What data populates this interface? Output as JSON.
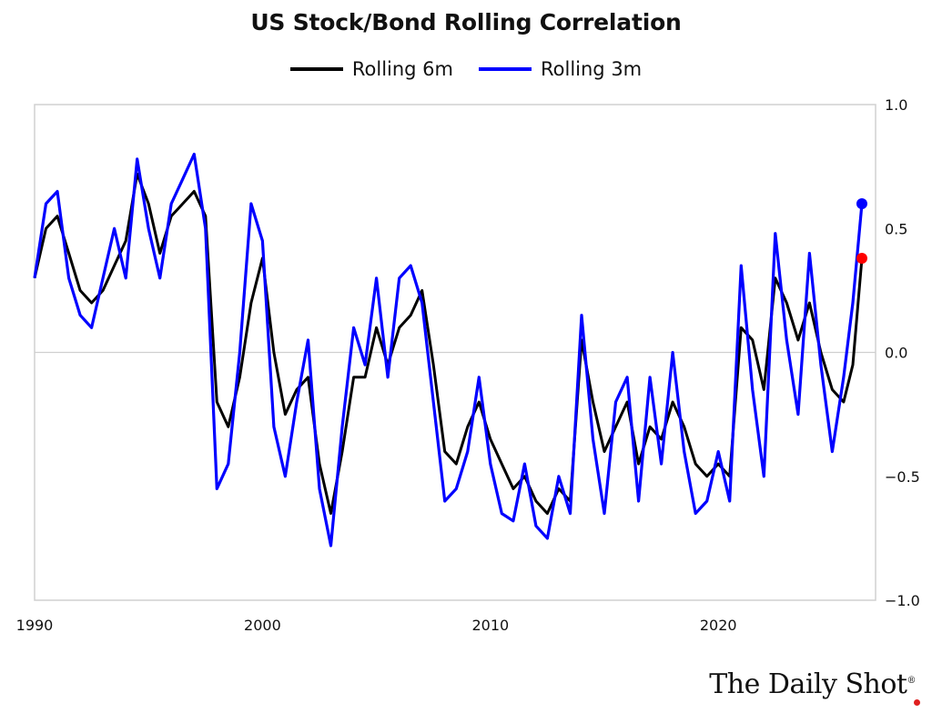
{
  "chart_data": {
    "type": "line",
    "title": "US Stock/Bond Rolling Correlation",
    "xlabel": "",
    "ylabel": "",
    "xlim": [
      1990,
      2026.9
    ],
    "ylim": [
      -1.0,
      1.0
    ],
    "x_ticks": [
      "1990",
      "2000",
      "2010",
      "2020"
    ],
    "y_ticks": [
      "1.0",
      "0.5",
      "0.0",
      "−0.5",
      "−1.0"
    ],
    "y_axis_side": "right",
    "legend_placement": "top-center",
    "grid": false,
    "zero_line": true,
    "series": [
      {
        "name": "Rolling 6m",
        "color": "#000000",
        "end_marker_color": "#ff0000",
        "x": [
          1990.0,
          1990.5,
          1991.0,
          1991.5,
          1992.0,
          1992.5,
          1993.0,
          1993.5,
          1994.0,
          1994.5,
          1995.0,
          1995.5,
          1996.0,
          1996.5,
          1997.0,
          1997.5,
          1998.0,
          1998.5,
          1999.0,
          1999.5,
          2000.0,
          2000.5,
          2001.0,
          2001.5,
          2002.0,
          2002.5,
          2003.0,
          2003.5,
          2004.0,
          2004.5,
          2005.0,
          2005.5,
          2006.0,
          2006.5,
          2007.0,
          2007.5,
          2008.0,
          2008.5,
          2009.0,
          2009.5,
          2010.0,
          2010.5,
          2011.0,
          2011.5,
          2012.0,
          2012.5,
          2013.0,
          2013.5,
          2014.0,
          2014.5,
          2015.0,
          2015.5,
          2016.0,
          2016.5,
          2017.0,
          2017.5,
          2018.0,
          2018.5,
          2019.0,
          2019.5,
          2020.0,
          2020.5,
          2021.0,
          2021.5,
          2022.0,
          2022.5,
          2023.0,
          2023.5,
          2024.0,
          2024.5,
          2025.0,
          2025.5,
          2025.9,
          2026.3
        ],
        "y": [
          0.3,
          0.5,
          0.55,
          0.4,
          0.25,
          0.2,
          0.25,
          0.35,
          0.45,
          0.72,
          0.6,
          0.4,
          0.55,
          0.6,
          0.65,
          0.55,
          -0.2,
          -0.3,
          -0.1,
          0.2,
          0.38,
          0.0,
          -0.25,
          -0.15,
          -0.1,
          -0.45,
          -0.65,
          -0.4,
          -0.1,
          -0.1,
          0.1,
          -0.05,
          0.1,
          0.15,
          0.25,
          -0.05,
          -0.4,
          -0.45,
          -0.3,
          -0.2,
          -0.35,
          -0.45,
          -0.55,
          -0.5,
          -0.6,
          -0.65,
          -0.55,
          -0.6,
          0.05,
          -0.2,
          -0.4,
          -0.3,
          -0.2,
          -0.45,
          -0.3,
          -0.35,
          -0.2,
          -0.3,
          -0.45,
          -0.5,
          -0.45,
          -0.5,
          0.1,
          0.05,
          -0.15,
          0.3,
          0.2,
          0.05,
          0.2,
          0.0,
          -0.15,
          -0.2,
          -0.05,
          0.38
        ]
      },
      {
        "name": "Rolling 3m",
        "color": "#0000ff",
        "end_marker_color": "#0000ff",
        "x": [
          1990.0,
          1990.5,
          1991.0,
          1991.5,
          1992.0,
          1992.5,
          1993.0,
          1993.5,
          1994.0,
          1994.5,
          1995.0,
          1995.5,
          1996.0,
          1996.5,
          1997.0,
          1997.5,
          1998.0,
          1998.5,
          1999.0,
          1999.5,
          2000.0,
          2000.5,
          2001.0,
          2001.5,
          2002.0,
          2002.5,
          2003.0,
          2003.5,
          2004.0,
          2004.5,
          2005.0,
          2005.5,
          2006.0,
          2006.5,
          2007.0,
          2007.5,
          2008.0,
          2008.5,
          2009.0,
          2009.5,
          2010.0,
          2010.5,
          2011.0,
          2011.5,
          2012.0,
          2012.5,
          2013.0,
          2013.5,
          2014.0,
          2014.5,
          2015.0,
          2015.5,
          2016.0,
          2016.5,
          2017.0,
          2017.5,
          2018.0,
          2018.5,
          2019.0,
          2019.5,
          2020.0,
          2020.5,
          2021.0,
          2021.5,
          2022.0,
          2022.5,
          2023.0,
          2023.5,
          2024.0,
          2024.5,
          2025.0,
          2025.5,
          2025.9,
          2026.3
        ],
        "y": [
          0.3,
          0.6,
          0.65,
          0.3,
          0.15,
          0.1,
          0.3,
          0.5,
          0.3,
          0.78,
          0.5,
          0.3,
          0.6,
          0.7,
          0.8,
          0.5,
          -0.55,
          -0.45,
          0.0,
          0.6,
          0.45,
          -0.3,
          -0.5,
          -0.2,
          0.05,
          -0.55,
          -0.78,
          -0.3,
          0.1,
          -0.05,
          0.3,
          -0.1,
          0.3,
          0.35,
          0.2,
          -0.2,
          -0.6,
          -0.55,
          -0.4,
          -0.1,
          -0.45,
          -0.65,
          -0.68,
          -0.45,
          -0.7,
          -0.75,
          -0.5,
          -0.65,
          0.15,
          -0.35,
          -0.65,
          -0.2,
          -0.1,
          -0.6,
          -0.1,
          -0.45,
          0.0,
          -0.4,
          -0.65,
          -0.6,
          -0.4,
          -0.6,
          0.35,
          -0.15,
          -0.5,
          0.48,
          0.05,
          -0.25,
          0.4,
          -0.05,
          -0.4,
          -0.1,
          0.2,
          0.6
        ]
      }
    ]
  },
  "brand": {
    "name": "The Daily Shot",
    "registered_mark": "®",
    "dot_color": "#e02020"
  }
}
